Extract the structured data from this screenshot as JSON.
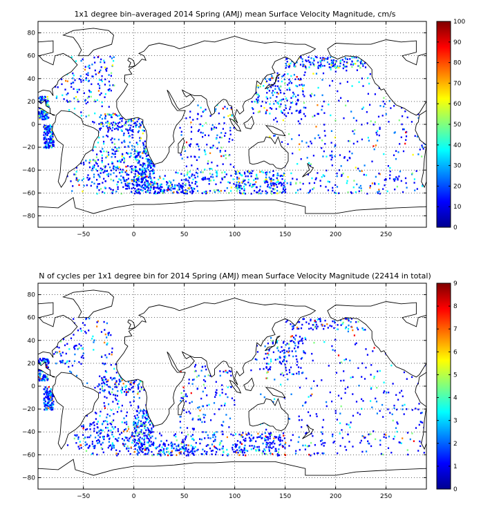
{
  "colormap": [
    "#00008f",
    "#0000ff",
    "#007fff",
    "#00ffff",
    "#7fff7f",
    "#ffff00",
    "#ff7f00",
    "#ff0000",
    "#7f0000"
  ],
  "chart_data": [
    {
      "type": "heatmap",
      "title": "1x1 degree bin–averaged 2014 Spring (AMJ) mean Surface Velocity Magnitude, cm/s",
      "xlabel": "",
      "ylabel": "",
      "xlim": [
        -95,
        290
      ],
      "ylim": [
        -90,
        90
      ],
      "xticks": [
        -50,
        0,
        50,
        100,
        150,
        200,
        250
      ],
      "xtick_labels": [
        "−50",
        "0",
        "50",
        "100",
        "150",
        "200",
        "250"
      ],
      "yticks": [
        80,
        60,
        40,
        20,
        0,
        -20,
        -40,
        -60,
        -80
      ],
      "ytick_labels": [
        "80",
        "60",
        "40",
        "20",
        "0",
        "−20",
        "−40",
        "−60",
        "−80"
      ],
      "grid": true,
      "colorbar": {
        "min": 0,
        "max": 100,
        "ticks": [
          0,
          10,
          20,
          30,
          40,
          50,
          60,
          70,
          80,
          90,
          100
        ],
        "tick_labels": [
          "0",
          "10",
          "20",
          "30",
          "40",
          "50",
          "60",
          "70",
          "80",
          "90",
          "100"
        ]
      },
      "seed": 7
    },
    {
      "type": "heatmap",
      "title": "N of cycles per 1x1 degree bin for 2014 Spring (AMJ) mean Surface Velocity Magnitude (22414 in total)",
      "xlabel": "",
      "ylabel": "",
      "xlim": [
        -95,
        290
      ],
      "ylim": [
        -90,
        90
      ],
      "xticks": [
        -50,
        0,
        50,
        100,
        150,
        200,
        250
      ],
      "xtick_labels": [
        "−50",
        "0",
        "50",
        "100",
        "150",
        "200",
        "250"
      ],
      "yticks": [
        80,
        60,
        40,
        20,
        0,
        -20,
        -40,
        -60,
        -80
      ],
      "ytick_labels": [
        "80",
        "60",
        "40",
        "20",
        "0",
        "−20",
        "−40",
        "−60",
        "−80"
      ],
      "grid": true,
      "colorbar": {
        "min": 0,
        "max": 9,
        "ticks": [
          0,
          1,
          2,
          3,
          4,
          5,
          6,
          7,
          8,
          9
        ],
        "tick_labels": [
          "0",
          "1",
          "2",
          "3",
          "4",
          "5",
          "6",
          "7",
          "8",
          "9"
        ]
      },
      "seed": 13
    }
  ]
}
